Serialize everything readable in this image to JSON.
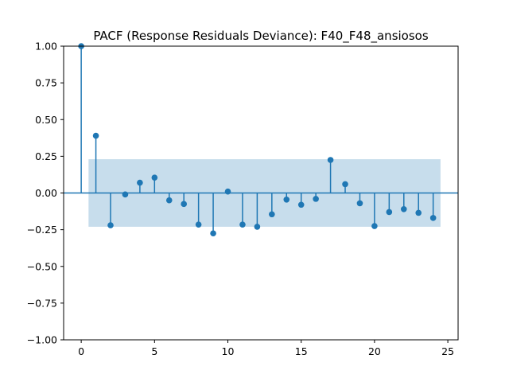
{
  "chart_data": {
    "type": "stem",
    "title": "PACF (Response Residuals Deviance): F40_F48_ansiosos",
    "xlabel": "",
    "ylabel": "",
    "xlim": [
      -1.2,
      25.7
    ],
    "ylim": [
      -1.0,
      1.0
    ],
    "x_ticks": [
      0,
      5,
      10,
      15,
      20,
      25
    ],
    "x_tick_labels": [
      "0",
      "5",
      "10",
      "15",
      "20",
      "25"
    ],
    "y_ticks": [
      -1.0,
      -0.75,
      -0.5,
      -0.25,
      0.0,
      0.25,
      0.5,
      0.75,
      1.0
    ],
    "y_tick_labels": [
      "−1.00",
      "−0.75",
      "−0.50",
      "−0.25",
      "0.00",
      "0.25",
      "0.50",
      "0.75",
      "1.00"
    ],
    "lags": [
      0,
      1,
      2,
      3,
      4,
      5,
      6,
      7,
      8,
      9,
      10,
      11,
      12,
      13,
      14,
      15,
      16,
      17,
      18,
      19,
      20,
      21,
      22,
      23,
      24
    ],
    "values": [
      1.0,
      0.39,
      -0.22,
      -0.01,
      0.07,
      0.105,
      -0.05,
      -0.075,
      -0.215,
      -0.275,
      0.01,
      -0.215,
      -0.23,
      -0.145,
      -0.045,
      -0.08,
      -0.04,
      0.225,
      0.06,
      -0.07,
      -0.225,
      -0.13,
      -0.11,
      -0.135,
      -0.17
    ],
    "confidence_band": {
      "x_start": 0.5,
      "x_end": 24.5,
      "upper": 0.23,
      "lower": -0.23
    },
    "grid": false,
    "colors": {
      "series": "#1f77b4",
      "band": "#1f77b4",
      "axes": "#000000"
    }
  }
}
